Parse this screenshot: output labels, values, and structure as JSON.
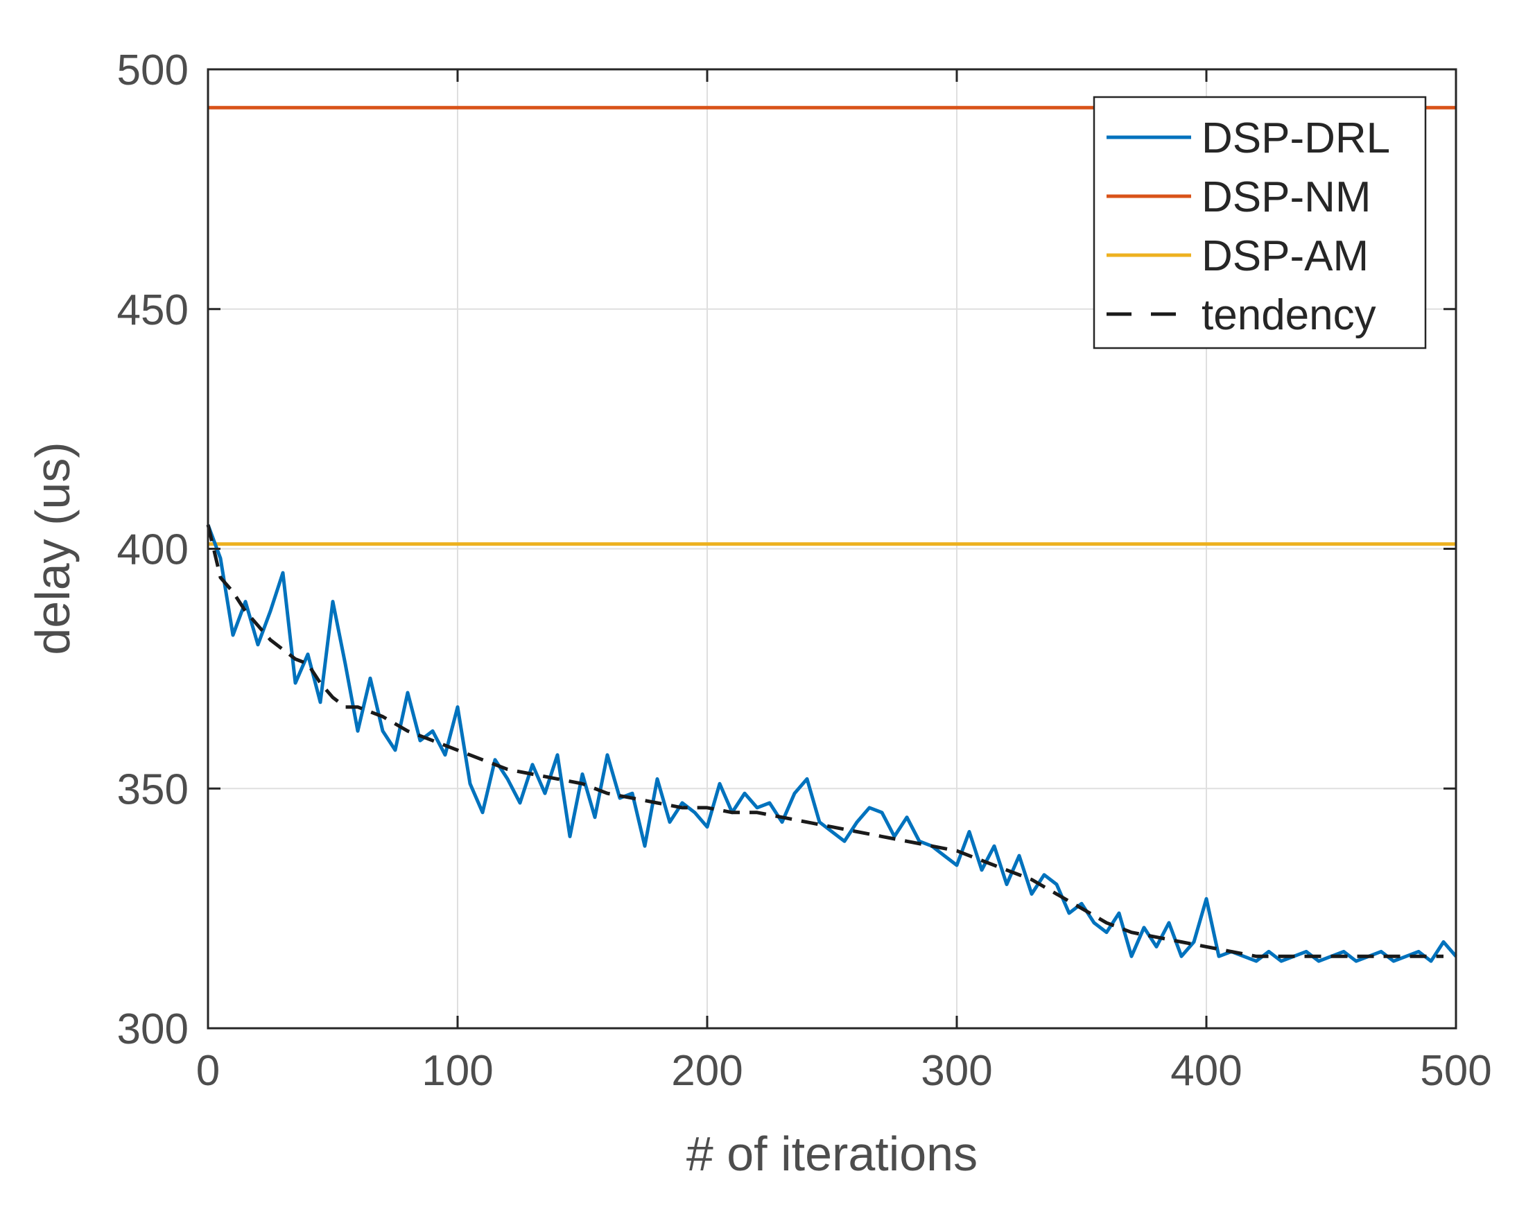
{
  "chart_data": {
    "type": "line",
    "title": "",
    "xlabel": "# of iterations",
    "ylabel": "delay (us)",
    "xlim": [
      0,
      500
    ],
    "ylim": [
      300,
      500
    ],
    "xticks": [
      0,
      100,
      200,
      300,
      400,
      500
    ],
    "yticks": [
      300,
      350,
      400,
      450,
      500
    ],
    "xtick_labels": [
      "0",
      "100",
      "200",
      "300",
      "400",
      "500"
    ],
    "ytick_labels": [
      "300",
      "350",
      "400",
      "450",
      "500"
    ],
    "grid": true,
    "legend_position": "top-right",
    "series": [
      {
        "name": "DSP-DRL",
        "color": "#0072bd",
        "style": "solid",
        "x": [
          0,
          5,
          10,
          15,
          20,
          25,
          30,
          35,
          40,
          45,
          50,
          55,
          60,
          65,
          70,
          75,
          80,
          85,
          90,
          95,
          100,
          105,
          110,
          115,
          120,
          125,
          130,
          135,
          140,
          145,
          150,
          155,
          160,
          165,
          170,
          175,
          180,
          185,
          190,
          195,
          200,
          205,
          210,
          215,
          220,
          225,
          230,
          235,
          240,
          245,
          250,
          255,
          260,
          265,
          270,
          275,
          280,
          285,
          290,
          295,
          300,
          305,
          310,
          315,
          320,
          325,
          330,
          335,
          340,
          345,
          350,
          355,
          360,
          365,
          370,
          375,
          380,
          385,
          390,
          395,
          400,
          405,
          410,
          415,
          420,
          425,
          430,
          435,
          440,
          445,
          450,
          455,
          460,
          465,
          470,
          475,
          480,
          485,
          490,
          495,
          500
        ],
        "values": [
          405,
          398,
          382,
          389,
          380,
          387,
          395,
          372,
          378,
          368,
          389,
          376,
          362,
          373,
          362,
          358,
          370,
          360,
          362,
          357,
          367,
          351,
          345,
          356,
          352,
          347,
          355,
          349,
          357,
          340,
          353,
          344,
          357,
          348,
          349,
          338,
          352,
          343,
          347,
          345,
          342,
          351,
          345,
          349,
          346,
          347,
          343,
          349,
          352,
          343,
          341,
          339,
          343,
          346,
          345,
          340,
          344,
          339,
          338,
          336,
          334,
          341,
          333,
          338,
          330,
          336,
          328,
          332,
          330,
          324,
          326,
          322,
          320,
          324,
          315,
          321,
          317,
          322,
          315,
          318,
          327,
          315,
          316,
          315,
          314,
          316,
          314,
          315,
          316,
          314,
          315,
          316,
          314,
          315,
          316,
          314,
          315,
          316,
          314,
          318,
          315
        ]
      },
      {
        "name": "DSP-NM",
        "color": "#d95319",
        "style": "solid",
        "x": [
          0,
          500
        ],
        "values": [
          492,
          492
        ]
      },
      {
        "name": "DSP-AM",
        "color": "#edb120",
        "style": "solid",
        "x": [
          0,
          500
        ],
        "values": [
          401,
          401
        ]
      },
      {
        "name": "tendency",
        "color": "#1a1a1a",
        "style": "dashed",
        "x": [
          0,
          5,
          10,
          15,
          20,
          25,
          30,
          35,
          40,
          45,
          50,
          55,
          60,
          70,
          80,
          90,
          100,
          110,
          120,
          130,
          140,
          150,
          160,
          170,
          180,
          190,
          200,
          210,
          220,
          230,
          240,
          250,
          260,
          270,
          280,
          290,
          300,
          310,
          320,
          330,
          340,
          350,
          360,
          370,
          380,
          390,
          400,
          410,
          420,
          430,
          440,
          450,
          460,
          470,
          480,
          490,
          495
        ],
        "values": [
          405,
          394,
          391,
          387,
          384,
          381,
          379,
          377,
          376,
          372,
          369,
          367,
          367,
          365,
          362,
          360,
          358,
          356,
          354,
          353,
          352,
          351,
          349,
          348,
          347,
          346,
          346,
          345,
          345,
          344,
          343,
          342,
          341,
          340,
          339,
          338,
          337,
          335,
          333,
          331,
          328,
          325,
          322,
          320,
          319,
          318,
          317,
          316,
          315,
          315,
          315,
          315,
          315,
          315,
          315,
          315,
          315
        ]
      }
    ]
  }
}
